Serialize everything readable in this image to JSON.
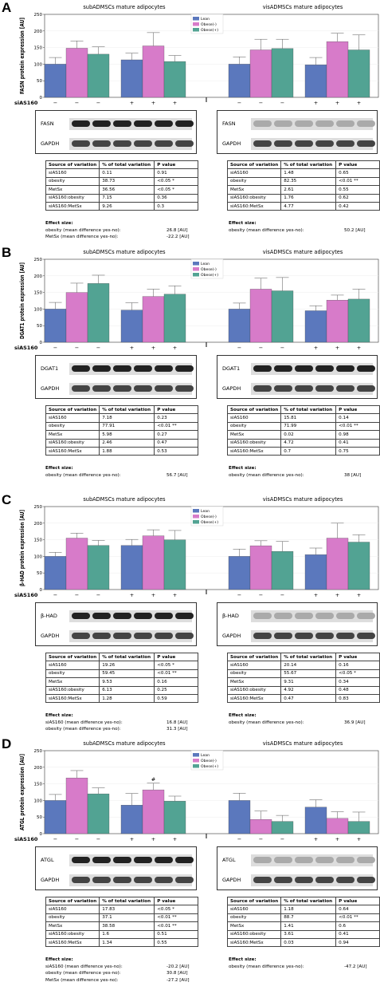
{
  "colors": {
    "lean": "#5b78bd",
    "obese_minus": "#d77bc9",
    "obese_plus": "#52a393",
    "axis": "#333333",
    "grid": "#ededed"
  },
  "panels": [
    {
      "letter": "A",
      "protein": "FASN",
      "chart_data": {
        "type": "bar",
        "ylabel": "FASN protein expression [AU]",
        "ylim": [
          0,
          250
        ],
        "yticks": [
          "0",
          "50",
          "100",
          "150",
          "200",
          "250"
        ],
        "groups": [
          {
            "title": "subADMSCs mature adipocytes",
            "sets": [
              {
                "sias160": "−",
                "values": [
                  100,
                  148,
                  130
                ],
                "errors": [
                  20,
                  22,
                  22
                ]
              },
              {
                "sias160": "+",
                "values": [
                  113,
                  155,
                  108
                ],
                "errors": [
                  20,
                  40,
                  18
                ]
              }
            ]
          },
          {
            "title": "visADMSCs mature adipocytes",
            "sets": [
              {
                "sias160": "−",
                "values": [
                  100,
                  143,
                  147
                ],
                "errors": [
                  22,
                  32,
                  28
                ]
              },
              {
                "sias160": "+",
                "values": [
                  98,
                  168,
                  143
                ],
                "errors": [
                  22,
                  25,
                  45
                ]
              }
            ]
          }
        ],
        "series": [
          {
            "name": "Lean"
          },
          {
            "name": "Obese(-)"
          },
          {
            "name": "Obese(+)"
          }
        ],
        "xlabel": "siAS160",
        "annotations": []
      },
      "blots": {
        "left": {
          "target": "FASN",
          "ref": "GAPDH"
        },
        "right": {
          "target": "FASN",
          "ref": "GAPDH"
        }
      },
      "tables": [
        {
          "headers": [
            "Source of variation",
            "% of total variation",
            "P value"
          ],
          "rows": [
            [
              "siAS160",
              "0.11",
              "0.91"
            ],
            [
              "obesity",
              "38.73",
              "<0.05 *"
            ],
            [
              "MetSx",
              "36.56",
              "<0.05 *"
            ],
            [
              "siAS160:obesity",
              "7.15",
              "0.36"
            ],
            [
              "siAS160:MetSx",
              "9.26",
              "0.3"
            ]
          ],
          "effect_title": "Effect size:",
          "effects": [
            [
              "obesity (mean difference yes-no):",
              "26.8 [AU]"
            ],
            [
              "MetSx (mean difference yes-no):",
              "-22.2 [AU]"
            ]
          ]
        },
        {
          "headers": [
            "Source of variation",
            "% of total variation",
            "P value"
          ],
          "rows": [
            [
              "siAS160",
              "1.48",
              "0.65"
            ],
            [
              "obesity",
              "82.35",
              "<0.01 **"
            ],
            [
              "MetSx",
              "2.61",
              "0.55"
            ],
            [
              "siAS160:obesity",
              "1.76",
              "0.62"
            ],
            [
              "siAS160:MetSx",
              "4.77",
              "0.42"
            ]
          ],
          "effect_title": "Effect size:",
          "effects": [
            [
              "obesity (mean difference yes-no):",
              "50.2 [AU]"
            ]
          ]
        }
      ]
    },
    {
      "letter": "B",
      "protein": "DGAT1",
      "chart_data": {
        "type": "bar",
        "ylabel": "DGAT1 protein expression [AU]",
        "ylim": [
          0,
          250
        ],
        "yticks": [
          "0",
          "50",
          "100",
          "150",
          "200",
          "250"
        ],
        "groups": [
          {
            "title": "subADMSCs mature adipocytes",
            "sets": [
              {
                "sias160": "−",
                "values": [
                  100,
                  150,
                  177
                ],
                "errors": [
                  20,
                  28,
                  25
                ]
              },
              {
                "sias160": "+",
                "values": [
                  97,
                  138,
                  145
                ],
                "errors": [
                  22,
                  22,
                  25
                ]
              }
            ]
          },
          {
            "title": "visADMSCs mature adipocytes",
            "sets": [
              {
                "sias160": "−",
                "values": [
                  100,
                  160,
                  155
                ],
                "errors": [
                  18,
                  33,
                  40
                ]
              },
              {
                "sias160": "+",
                "values": [
                  95,
                  127,
                  130
                ],
                "errors": [
                  15,
                  15,
                  30
                ]
              }
            ]
          }
        ],
        "series": [
          {
            "name": "Lean"
          },
          {
            "name": "Obese(-)"
          },
          {
            "name": "Obese(+)"
          }
        ],
        "xlabel": "siAS160",
        "annotations": []
      },
      "blots": {
        "left": {
          "target": "DGAT1",
          "ref": "GAPDH"
        },
        "right": {
          "target": "DGAT1",
          "ref": "GAPDH"
        }
      },
      "tables": [
        {
          "headers": [
            "Source of variation",
            "% of total variation",
            "P value"
          ],
          "rows": [
            [
              "siAS160",
              "7.18",
              "0.23"
            ],
            [
              "obesity",
              "77.91",
              "<0.01 **"
            ],
            [
              "MetSx",
              "5.98",
              "0.27"
            ],
            [
              "siAS160:obesity",
              "2.46",
              "0.47"
            ],
            [
              "siAS160:MetSx",
              "1.88",
              "0.53"
            ]
          ],
          "effect_title": "Effect size:",
          "effects": [
            [
              "obesity (mean difference yes-no):",
              "56.7 [AU]"
            ]
          ]
        },
        {
          "headers": [
            "Source of variation",
            "% of total variation",
            "P value"
          ],
          "rows": [
            [
              "siAS160",
              "15.81",
              "0.14"
            ],
            [
              "obesity",
              "71.99",
              "<0.01 **"
            ],
            [
              "MetSx",
              "0.02",
              "0.98"
            ],
            [
              "siAS160:obesity",
              "4.72",
              "0.41"
            ],
            [
              "siAS160:MetSx",
              "0.7",
              "0.75"
            ]
          ],
          "effect_title": "Effect size:",
          "effects": [
            [
              "obesity (mean difference yes-no):",
              "38 [AU]"
            ]
          ]
        }
      ]
    },
    {
      "letter": "C",
      "protein": "β-HAD",
      "chart_data": {
        "type": "bar",
        "ylabel": "β-HAD protein expression [AU]",
        "ylim": [
          0,
          250
        ],
        "yticks": [
          "0",
          "50",
          "100",
          "150",
          "200",
          "250"
        ],
        "groups": [
          {
            "title": "subADMSCs mature adipocytes",
            "sets": [
              {
                "sias160": "−",
                "values": [
                  100,
                  155,
                  133
                ],
                "errors": [
                  12,
                  15,
                  15
                ]
              },
              {
                "sias160": "+",
                "values": [
                  133,
                  162,
                  150
                ],
                "errors": [
                  18,
                  18,
                  28
                ]
              }
            ]
          },
          {
            "title": "visADMSCs mature adipocytes",
            "sets": [
              {
                "sias160": "−",
                "values": [
                  100,
                  132,
                  115
                ],
                "errors": [
                  22,
                  15,
                  30
                ]
              },
              {
                "sias160": "+",
                "values": [
                  105,
                  155,
                  143
                ],
                "errors": [
                  20,
                  45,
                  22
                ]
              }
            ]
          }
        ],
        "series": [
          {
            "name": "Lean"
          },
          {
            "name": "Obese(-)"
          },
          {
            "name": "Obese(+)"
          }
        ],
        "xlabel": "siAS160",
        "annotations": []
      },
      "blots": {
        "left": {
          "target": "β-HAD",
          "ref": "GAPDH"
        },
        "right": {
          "target": "β-HAD",
          "ref": "GAPDH"
        }
      },
      "tables": [
        {
          "headers": [
            "Source of variation",
            "% of total variation",
            "P value"
          ],
          "rows": [
            [
              "siAS160",
              "19.26",
              "<0.05 *"
            ],
            [
              "obesity",
              "59.45",
              "<0.01 **"
            ],
            [
              "MetSx",
              "9.53",
              "0.16"
            ],
            [
              "siAS160:obesity",
              "6.13",
              "0.25"
            ],
            [
              "siAS160:MetSx",
              "1.28",
              "0.59"
            ]
          ],
          "effect_title": "Effect size:",
          "effects": [
            [
              "siAS160 (mean difference yes-no):",
              "16.8 [AU]"
            ],
            [
              "obesity (mean difference yes-no):",
              "31.3 [AU]"
            ]
          ]
        },
        {
          "headers": [
            "Source of variation",
            "% of total variation",
            "P value"
          ],
          "rows": [
            [
              "siAS160",
              "20.14",
              "0.16"
            ],
            [
              "obesity",
              "55.67",
              "<0.05 *"
            ],
            [
              "MetSx",
              "9.31",
              "0.34"
            ],
            [
              "siAS160:obesity",
              "4.92",
              "0.48"
            ],
            [
              "siAS160:MetSx",
              "0.47",
              "0.83"
            ]
          ],
          "effect_title": "Effect size:",
          "effects": [
            [
              "obesity (mean difference yes-no):",
              "36.9 [AU]"
            ]
          ]
        }
      ]
    },
    {
      "letter": "D",
      "protein": "ATGL",
      "chart_data": {
        "type": "bar",
        "ylabel": "ATGL protein expression [AU]",
        "ylim": [
          0,
          250
        ],
        "yticks": [
          "0",
          "50",
          "100",
          "150",
          "200",
          "250"
        ],
        "groups": [
          {
            "title": "subADMSCs mature adipocytes",
            "sets": [
              {
                "sias160": "−",
                "values": [
                  100,
                  168,
                  120
                ],
                "errors": [
                  18,
                  22,
                  18
                ]
              },
              {
                "sias160": "+",
                "values": [
                  86,
                  132,
                  98
                ],
                "errors": [
                  35,
                  20,
                  15
                ]
              }
            ]
          },
          {
            "title": "visADMSCs mature adipocytes",
            "sets": [
              {
                "sias160": "−",
                "values": [
                  100,
                  43,
                  37
                ],
                "errors": [
                  22,
                  25,
                  18
                ]
              },
              {
                "sias160": "+",
                "values": [
                  80,
                  46,
                  37
                ],
                "errors": [
                  22,
                  20,
                  28
                ]
              }
            ]
          }
        ],
        "series": [
          {
            "name": "Lean"
          },
          {
            "name": "Obese(-)"
          },
          {
            "name": "Obese(+)"
          }
        ],
        "xlabel": "siAS160",
        "annotations": [
          "#"
        ]
      },
      "blots": {
        "left": {
          "target": "ATGL",
          "ref": "GAPDH"
        },
        "right": {
          "target": "ATGL",
          "ref": "GAPDH"
        }
      },
      "tables": [
        {
          "headers": [
            "Source of variation",
            "% of total variation",
            "P value"
          ],
          "rows": [
            [
              "siAS160",
              "17.83",
              "<0.05 *"
            ],
            [
              "obesity",
              "37.1",
              "<0.01 **"
            ],
            [
              "MetSx",
              "38.58",
              "<0.01 **"
            ],
            [
              "siAS160:obesity",
              "1.6",
              "0.51"
            ],
            [
              "siAS160:MetSx",
              "1.34",
              "0.55"
            ]
          ],
          "effect_title": "Effect size:",
          "effects": [
            [
              "siAS160 (mean difference yes-no):",
              "-20.2 [AU]"
            ],
            [
              "obesity (mean difference yes-no):",
              "30.8 [AU]"
            ],
            [
              "MetSx (mean difference yes-no):",
              "-27.2 [AU]"
            ]
          ]
        },
        {
          "headers": [
            "Source of variation",
            "% of total variation",
            "P value"
          ],
          "rows": [
            [
              "siAS160",
              "1.18",
              "0.64"
            ],
            [
              "obesity",
              "88.7",
              "<0.01 **"
            ],
            [
              "MetSx",
              "1.41",
              "0.6"
            ],
            [
              "siAS160:obesity",
              "3.61",
              "0.41"
            ],
            [
              "siAS160:MetSx",
              "0.03",
              "0.94"
            ]
          ],
          "effect_title": "Effect size:",
          "effects": [
            [
              "obesity (mean difference yes-no):",
              "-47.2 [AU]"
            ]
          ]
        }
      ]
    }
  ]
}
